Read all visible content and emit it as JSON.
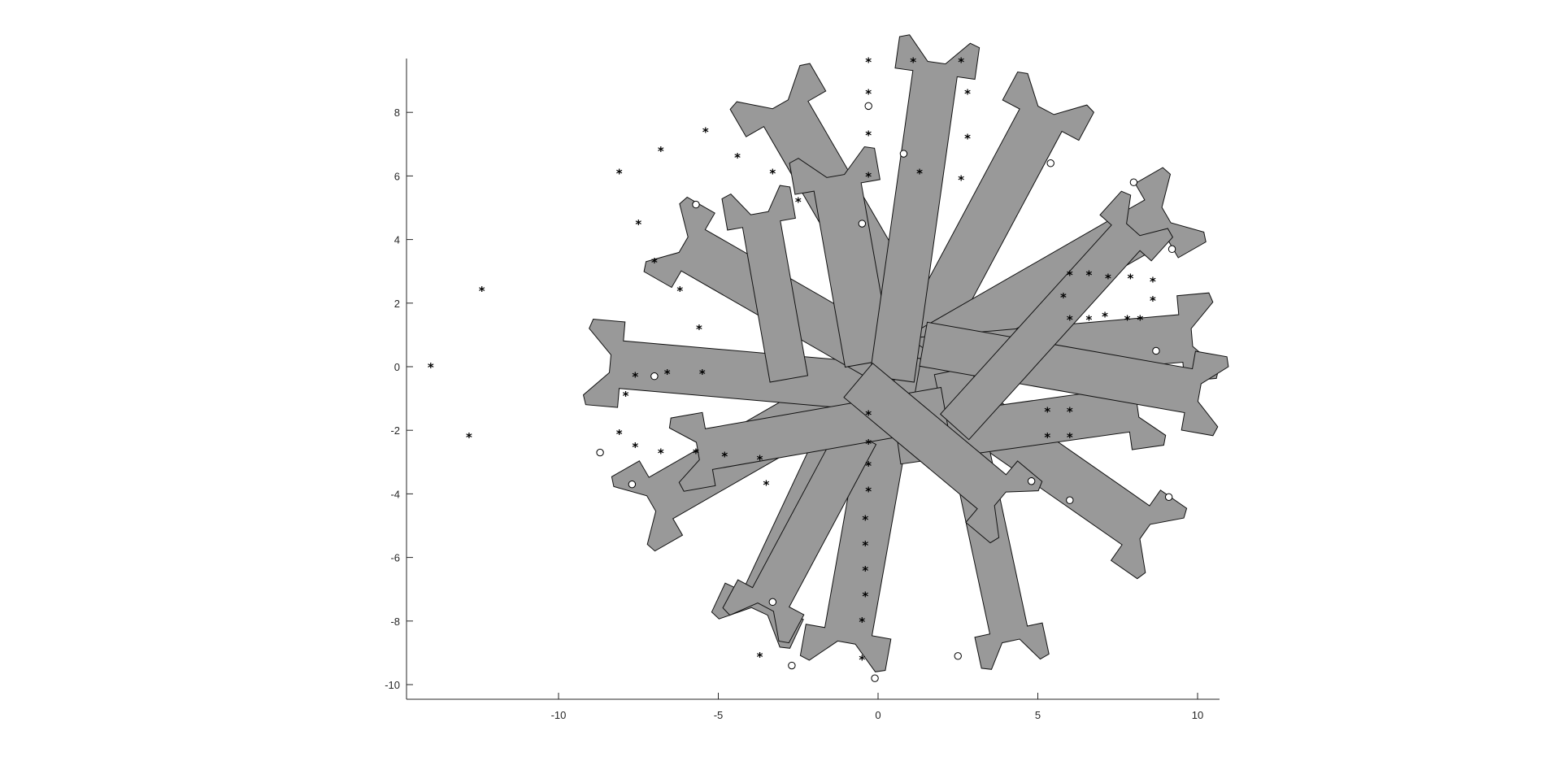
{
  "chart_data": {
    "type": "scatter",
    "title": "",
    "xlabel": "",
    "ylabel": "",
    "xlim": [
      -14.5,
      10.7
    ],
    "ylim": [
      -10.4,
      9.7
    ],
    "xticks": [
      -10,
      -5,
      0,
      5,
      10
    ],
    "yticks": [
      8,
      6,
      4,
      2,
      0,
      -2,
      -4,
      -6,
      -8,
      -10
    ],
    "tick_labels_x": [
      "-10",
      "-5",
      "0",
      "5",
      "10"
    ],
    "tick_labels_y": [
      "8",
      "6",
      "4",
      "2",
      "0",
      "-2",
      "-4",
      "-6",
      "-8",
      "-10"
    ],
    "grid": false,
    "legend": "none",
    "colors": {
      "shape_fill": "#999999",
      "shape_edge": "#111111",
      "marker": "#000000",
      "accent_red": "#e01818",
      "accent_green": "#12b512"
    },
    "series": [
      {
        "marker": "asterisk",
        "points": [
          [
            -14,
            0
          ],
          [
            -12.4,
            2.4
          ],
          [
            -12.8,
            -2.2
          ],
          [
            -8.1,
            6.1
          ],
          [
            -6.8,
            6.8
          ],
          [
            -5.4,
            7.4
          ],
          [
            -4.4,
            6.6
          ],
          [
            -3.3,
            6.1
          ],
          [
            -2.5,
            5.2
          ],
          [
            -7.5,
            4.5
          ],
          [
            -7,
            3.3
          ],
          [
            -6.2,
            2.4
          ],
          [
            -5.6,
            1.2
          ],
          [
            -7.9,
            -0.9
          ],
          [
            -7.6,
            -0.3
          ],
          [
            -6.6,
            -0.2
          ],
          [
            -5.5,
            -0.2
          ],
          [
            -8.1,
            -2.1
          ],
          [
            -7.6,
            -2.5
          ],
          [
            -6.8,
            -2.7
          ],
          [
            -5.7,
            -2.7
          ],
          [
            -4.8,
            -2.8
          ],
          [
            -3.7,
            -2.9
          ],
          [
            -3.5,
            -3.7
          ],
          [
            -0.3,
            9.6
          ],
          [
            1.1,
            9.6
          ],
          [
            2.6,
            9.6
          ],
          [
            -0.3,
            8.6
          ],
          [
            2.8,
            8.6
          ],
          [
            -0.3,
            7.3
          ],
          [
            2.8,
            7.2
          ],
          [
            -0.3,
            6.0
          ],
          [
            1.3,
            6.1
          ],
          [
            2.6,
            5.9
          ],
          [
            6.0,
            2.9
          ],
          [
            6.6,
            2.9
          ],
          [
            7.2,
            2.8
          ],
          [
            7.9,
            2.8
          ],
          [
            8.6,
            2.7
          ],
          [
            8.6,
            2.1
          ],
          [
            5.8,
            2.2
          ],
          [
            6.0,
            1.5
          ],
          [
            6.6,
            1.5
          ],
          [
            7.1,
            1.6
          ],
          [
            7.8,
            1.5
          ],
          [
            8.2,
            1.5
          ],
          [
            5.3,
            -1.4
          ],
          [
            6.0,
            -1.4
          ],
          [
            5.3,
            -2.2
          ],
          [
            6.0,
            -2.2
          ],
          [
            -0.3,
            -1.5
          ],
          [
            -0.3,
            -2.4
          ],
          [
            -0.3,
            -3.1
          ],
          [
            -0.3,
            -3.9
          ],
          [
            -0.4,
            -4.8
          ],
          [
            -0.4,
            -5.6
          ],
          [
            -0.4,
            -6.4
          ],
          [
            -0.4,
            -7.2
          ],
          [
            -0.5,
            -8.0
          ],
          [
            -0.5,
            -9.2
          ],
          [
            -3.7,
            -9.1
          ]
        ]
      },
      {
        "marker": "circle",
        "points": [
          [
            -0.3,
            8.2
          ],
          [
            0.8,
            6.7
          ],
          [
            -0.5,
            4.5
          ],
          [
            -5.7,
            5.1
          ],
          [
            5.4,
            6.4
          ],
          [
            8.0,
            5.8
          ],
          [
            9.2,
            3.7
          ],
          [
            8.7,
            0.5
          ],
          [
            -7.0,
            -0.3
          ],
          [
            -8.7,
            -2.7
          ],
          [
            -7.7,
            -3.7
          ],
          [
            -3.3,
            -7.4
          ],
          [
            -2.7,
            -9.4
          ],
          [
            -0.1,
            -9.8
          ],
          [
            2.5,
            -9.1
          ],
          [
            4.8,
            -3.6
          ],
          [
            6.0,
            -4.2
          ],
          [
            9.1,
            -4.1
          ]
        ]
      }
    ]
  }
}
